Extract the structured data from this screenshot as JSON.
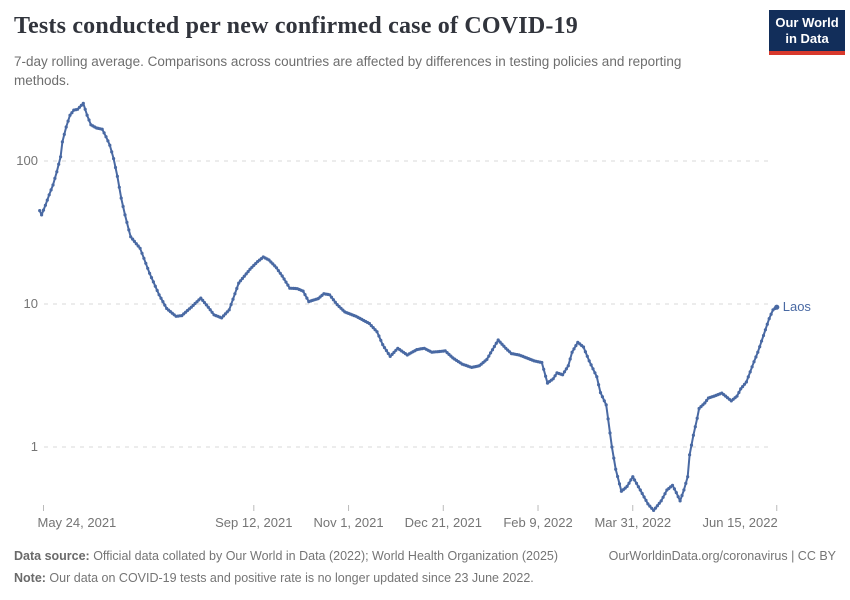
{
  "header": {
    "title": "Tests conducted per new confirmed case of COVID-19",
    "subtitle": "7-day rolling average. Comparisons across countries are affected by differences in testing policies and reporting methods."
  },
  "logo": {
    "line1": "Our World",
    "line2": "in Data",
    "bg_color": "#122E5A",
    "stripe_color": "#D8392C"
  },
  "chart_data": {
    "type": "line",
    "title": "Tests conducted per new confirmed case of COVID-19",
    "y_scale": "log",
    "ylim": [
      0.3,
      300
    ],
    "grid": true,
    "legend_position": "end-of-line",
    "y_ticks": [
      {
        "label": "1",
        "value": 1
      },
      {
        "label": "10",
        "value": 10
      },
      {
        "label": "100",
        "value": 100
      }
    ],
    "x_ticks": [
      {
        "label": "May 24, 2021",
        "date": "2021-05-24",
        "align": "left"
      },
      {
        "label": "Sep 12, 2021",
        "date": "2021-09-12",
        "align": "center"
      },
      {
        "label": "Nov 1, 2021",
        "date": "2021-11-01",
        "align": "center"
      },
      {
        "label": "Dec 21, 2021",
        "date": "2021-12-21",
        "align": "center"
      },
      {
        "label": "Feb 9, 2022",
        "date": "2022-02-09",
        "align": "center"
      },
      {
        "label": "Mar 31, 2022",
        "date": "2022-03-31",
        "align": "center"
      },
      {
        "label": "Jun 15, 2022",
        "date": "2022-06-15",
        "align": "right"
      }
    ],
    "series": [
      {
        "name": "Laos",
        "color": "#4969A3",
        "points": [
          [
            "2021-05-22",
            45
          ],
          [
            "2021-05-23",
            42
          ],
          [
            "2021-05-25",
            49
          ],
          [
            "2021-05-27",
            58
          ],
          [
            "2021-05-29",
            68
          ],
          [
            "2021-05-31",
            84
          ],
          [
            "2021-06-01",
            95
          ],
          [
            "2021-06-02",
            107
          ],
          [
            "2021-06-03",
            136
          ],
          [
            "2021-06-05",
            173
          ],
          [
            "2021-06-07",
            209
          ],
          [
            "2021-06-09",
            227
          ],
          [
            "2021-06-11",
            230
          ],
          [
            "2021-06-14",
            253
          ],
          [
            "2021-06-16",
            209
          ],
          [
            "2021-06-18",
            179
          ],
          [
            "2021-06-21",
            170
          ],
          [
            "2021-06-24",
            167
          ],
          [
            "2021-06-26",
            148
          ],
          [
            "2021-06-28",
            129
          ],
          [
            "2021-06-30",
            104
          ],
          [
            "2021-07-02",
            78
          ],
          [
            "2021-07-04",
            55
          ],
          [
            "2021-07-06",
            42
          ],
          [
            "2021-07-08",
            33
          ],
          [
            "2021-07-09",
            29.5
          ],
          [
            "2021-07-14",
            24.5
          ],
          [
            "2021-07-19",
            16.4
          ],
          [
            "2021-07-24",
            11.6
          ],
          [
            "2021-07-28",
            9.3
          ],
          [
            "2021-08-02",
            8.2
          ],
          [
            "2021-08-05",
            8.3
          ],
          [
            "2021-08-10",
            9.5
          ],
          [
            "2021-08-15",
            11
          ],
          [
            "2021-08-19",
            9.5
          ],
          [
            "2021-08-22",
            8.4
          ],
          [
            "2021-08-26",
            8
          ],
          [
            "2021-08-30",
            9.1
          ],
          [
            "2021-09-04",
            14
          ],
          [
            "2021-09-10",
            17.5
          ],
          [
            "2021-09-14",
            19.8
          ],
          [
            "2021-09-17",
            21.3
          ],
          [
            "2021-09-20",
            20.3
          ],
          [
            "2021-09-24",
            17.9
          ],
          [
            "2021-09-27",
            15.7
          ],
          [
            "2021-10-01",
            12.9
          ],
          [
            "2021-10-05",
            12.8
          ],
          [
            "2021-10-08",
            12.3
          ],
          [
            "2021-10-11",
            10.4
          ],
          [
            "2021-10-16",
            10.9
          ],
          [
            "2021-10-19",
            11.8
          ],
          [
            "2021-10-22",
            11.6
          ],
          [
            "2021-10-26",
            9.9
          ],
          [
            "2021-10-30",
            8.8
          ],
          [
            "2021-11-05",
            8.2
          ],
          [
            "2021-11-12",
            7.3
          ],
          [
            "2021-11-16",
            6.4
          ],
          [
            "2021-11-19",
            5.2
          ],
          [
            "2021-11-23",
            4.3
          ],
          [
            "2021-11-27",
            4.9
          ],
          [
            "2021-12-02",
            4.4
          ],
          [
            "2021-12-07",
            4.8
          ],
          [
            "2021-12-11",
            4.9
          ],
          [
            "2021-12-15",
            4.6
          ],
          [
            "2021-12-22",
            4.7
          ],
          [
            "2021-12-26",
            4.2
          ],
          [
            "2021-12-31",
            3.8
          ],
          [
            "2022-01-05",
            3.6
          ],
          [
            "2022-01-09",
            3.7
          ],
          [
            "2022-01-13",
            4.1
          ],
          [
            "2022-01-19",
            5.6
          ],
          [
            "2022-01-23",
            4.9
          ],
          [
            "2022-01-26",
            4.5
          ],
          [
            "2022-01-30",
            4.4
          ],
          [
            "2022-02-03",
            4.2
          ],
          [
            "2022-02-07",
            4
          ],
          [
            "2022-02-11",
            3.9
          ],
          [
            "2022-02-14",
            2.8
          ],
          [
            "2022-02-17",
            3
          ],
          [
            "2022-02-19",
            3.3
          ],
          [
            "2022-02-22",
            3.2
          ],
          [
            "2022-02-25",
            3.7
          ],
          [
            "2022-02-27",
            4.6
          ],
          [
            "2022-03-02",
            5.4
          ],
          [
            "2022-03-05",
            5
          ],
          [
            "2022-03-08",
            4
          ],
          [
            "2022-03-12",
            3.1
          ],
          [
            "2022-03-14",
            2.4
          ],
          [
            "2022-03-17",
            1.97
          ],
          [
            "2022-03-20",
            1
          ],
          [
            "2022-03-22",
            0.7
          ],
          [
            "2022-03-25",
            0.49
          ],
          [
            "2022-03-28",
            0.53
          ],
          [
            "2022-03-31",
            0.62
          ],
          [
            "2022-04-04",
            0.5
          ],
          [
            "2022-04-08",
            0.4
          ],
          [
            "2022-04-11",
            0.36
          ],
          [
            "2022-04-15",
            0.42
          ],
          [
            "2022-04-18",
            0.5
          ],
          [
            "2022-04-21",
            0.54
          ],
          [
            "2022-04-23",
            0.48
          ],
          [
            "2022-04-25",
            0.42
          ],
          [
            "2022-04-27",
            0.5
          ],
          [
            "2022-04-29",
            0.62
          ],
          [
            "2022-04-30",
            0.88
          ],
          [
            "2022-05-02",
            1.21
          ],
          [
            "2022-05-04",
            1.59
          ],
          [
            "2022-05-05",
            1.86
          ],
          [
            "2022-05-08",
            2.03
          ],
          [
            "2022-05-10",
            2.2
          ],
          [
            "2022-05-13",
            2.27
          ],
          [
            "2022-05-17",
            2.38
          ],
          [
            "2022-05-19",
            2.27
          ],
          [
            "2022-05-22",
            2.1
          ],
          [
            "2022-05-25",
            2.27
          ],
          [
            "2022-05-27",
            2.55
          ],
          [
            "2022-05-30",
            2.85
          ],
          [
            "2022-06-01",
            3.35
          ],
          [
            "2022-06-03",
            3.95
          ],
          [
            "2022-06-05",
            4.6
          ],
          [
            "2022-06-07",
            5.5
          ],
          [
            "2022-06-09",
            6.6
          ],
          [
            "2022-06-11",
            7.9
          ],
          [
            "2022-06-13",
            9.1
          ],
          [
            "2022-06-15",
            9.5
          ]
        ]
      }
    ],
    "end_label": "Laos"
  },
  "footer": {
    "datasource_label": "Data source:",
    "datasource_text": " Official data collated by Our World in Data (2022); World Health Organization (2025)",
    "note_label": "Note:",
    "note_text": " Our data on COVID-19 tests and positive rate is no longer updated since 23 June 2022.",
    "license": "OurWorldinData.org/coronavirus | CC BY"
  }
}
